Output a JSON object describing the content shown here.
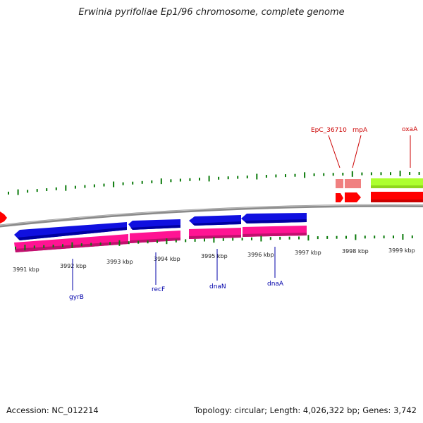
{
  "title": "Erwinia pyrifoliae Ep1/96 chromosome, complete genome",
  "footer": {
    "accession": "Accession: NC_012214",
    "summary": "Topology: circular; Length: 4,026,322 bp; Genes: 3,742"
  },
  "colors": {
    "backbone": "#8a8a8a",
    "tick": "#0a7a0a",
    "cds_reverse": "#1010e0",
    "gene_track": "#ff1493",
    "trna": "#f08080",
    "rna_arrow": "#ff0000",
    "cds_forward_light": "#adff2f",
    "label_top": "#cc0000",
    "label_bottom": "#0000aa"
  },
  "kbp_labels": [
    "3991 kbp",
    "3992 kbp",
    "3993 kbp",
    "3994 kbp",
    "3995 kbp",
    "3996 kbp",
    "3997 kbp",
    "3998 kbp",
    "3999 kbp"
  ],
  "genes_bottom": [
    "gyrB",
    "recF",
    "dnaN",
    "dnaA"
  ],
  "genes_top": [
    "EpC_36710",
    "rnpA",
    "oxaA"
  ]
}
